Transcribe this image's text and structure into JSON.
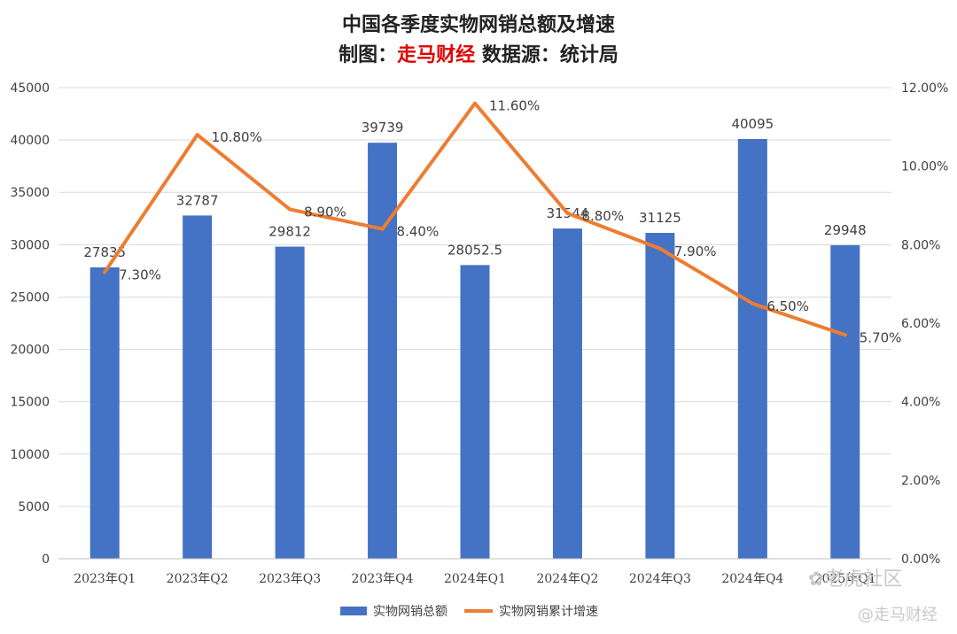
{
  "title_line1": "中国各季度实物网销总额及增速",
  "subtitle": {
    "prefix": "制图：",
    "highlight": "走马财经",
    "suffix": " 数据源：统计局"
  },
  "colors": {
    "bar": "#4472c4",
    "line": "#ed7d31",
    "highlight": "#e00000",
    "grid": "#d9d9d9",
    "text": "#404040"
  },
  "watermarks": {
    "community": "老虎社区",
    "handle": "@走马财经"
  },
  "chart_data": {
    "type": "bar",
    "combo": "bar+line (dual axis)",
    "categories": [
      "2023年Q1",
      "2023年Q2",
      "2023年Q3",
      "2023年Q4",
      "2024年Q1",
      "2024年Q2",
      "2024年Q3",
      "2024年Q4",
      "2025年Q1"
    ],
    "series": [
      {
        "name": "实物网销总额",
        "type": "bar",
        "axis": "left",
        "values": [
          27835,
          32787,
          29812,
          39739,
          28052.5,
          31544,
          31125,
          40095,
          29948
        ],
        "labels": [
          "27835",
          "32787",
          "29812",
          "39739",
          "28052.5",
          "31544",
          "31125",
          "40095",
          "29948"
        ]
      },
      {
        "name": "实物网销累计增速",
        "type": "line",
        "axis": "right",
        "values": [
          7.3,
          10.8,
          8.9,
          8.4,
          11.6,
          8.8,
          7.9,
          6.5,
          5.7
        ],
        "labels": [
          "7.30%",
          "10.80%",
          "8.90%",
          "8.40%",
          "11.60%",
          "8.80%",
          "7.90%",
          "6.50%",
          "5.70%"
        ]
      }
    ],
    "y_left": {
      "range": [
        0,
        45000
      ],
      "ticks": [
        "0",
        "5000",
        "10000",
        "15000",
        "20000",
        "25000",
        "30000",
        "35000",
        "40000",
        "45000"
      ]
    },
    "y_right": {
      "range": [
        0,
        12
      ],
      "ticks": [
        "0.00%",
        "2.00%",
        "4.00%",
        "6.00%",
        "8.00%",
        "10.00%",
        "12.00%"
      ]
    },
    "grid": true,
    "legend": "bottom"
  }
}
